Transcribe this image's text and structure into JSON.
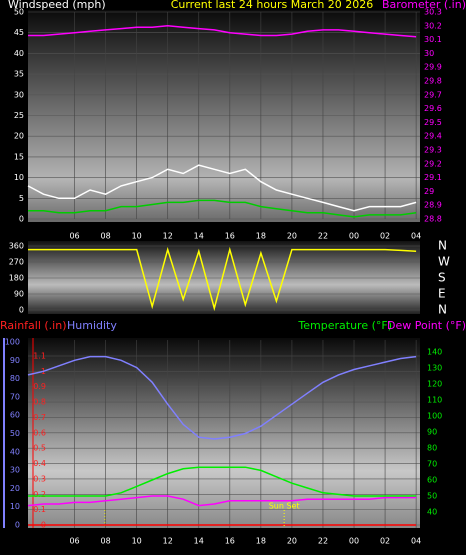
{
  "chart_data": [
    {
      "type": "line",
      "title": "Current last 24 hours March 20 2026",
      "ylabel": "Windspeed (mph)",
      "y2label": "Barometer (.in)",
      "x": [
        3,
        4,
        5,
        6,
        7,
        8,
        9,
        10,
        11,
        12,
        13,
        14,
        15,
        16,
        17,
        18,
        19,
        20,
        21,
        22,
        23,
        24,
        25,
        26,
        27,
        28
      ],
      "xlim": [
        3,
        28.25
      ],
      "xticks": [
        {
          "value": 6,
          "label": "06"
        },
        {
          "value": 8,
          "label": "08"
        },
        10,
        12,
        14,
        16,
        18,
        20,
        22,
        {
          "value": 24,
          "label": "00"
        },
        {
          "value": 26,
          "label": "02"
        },
        {
          "value": 28,
          "label": "04"
        }
      ],
      "ylim": [
        0,
        50
      ],
      "yticks": [
        0,
        5,
        10,
        15,
        20,
        25,
        30,
        35,
        40,
        45,
        50
      ],
      "y2lim": [
        28.8,
        30.3
      ],
      "y2ticks": [
        28.8,
        28.9,
        29,
        29.1,
        29.2,
        29.3,
        29.4,
        29.5,
        29.6,
        29.7,
        29.8,
        29.9,
        30,
        30.1,
        30.2,
        30.3
      ],
      "grid": true,
      "series": [
        {
          "color": "#ffffff",
          "values": [
            8,
            6,
            5,
            5,
            7,
            6,
            8,
            9,
            10,
            12,
            11,
            13,
            12,
            11,
            12,
            9,
            7,
            6,
            5,
            4,
            3,
            2,
            3,
            3,
            3,
            4
          ]
        },
        {
          "color": "#00cc00",
          "values": [
            2,
            2,
            1.5,
            1.5,
            2,
            2,
            3,
            3,
            3.5,
            4,
            4,
            4.5,
            4.5,
            4,
            4,
            3,
            2.5,
            2,
            1.5,
            1.5,
            1,
            0.5,
            1,
            1,
            1,
            1.5
          ]
        },
        {
          "color": "#ff00ff",
          "axis": "y2",
          "values": [
            30.13,
            30.13,
            30.14,
            30.15,
            30.16,
            30.17,
            30.18,
            30.19,
            30.19,
            30.2,
            30.19,
            30.18,
            30.17,
            30.15,
            30.14,
            30.13,
            30.13,
            30.14,
            30.16,
            30.17,
            30.17,
            30.16,
            30.15,
            30.14,
            30.13,
            30.12
          ]
        }
      ]
    },
    {
      "type": "line",
      "x": [
        3,
        4,
        5,
        6,
        7,
        8,
        9,
        10,
        11,
        12,
        13,
        14,
        15,
        16,
        17,
        18,
        19,
        20,
        21,
        22,
        23,
        24,
        25,
        26,
        27,
        28
      ],
      "xlim": [
        3,
        28.25
      ],
      "ylim": [
        0,
        360
      ],
      "yticks": [
        0,
        90,
        180,
        270,
        360
      ],
      "y2ticks": [
        {
          "value": 360,
          "label": "N"
        },
        {
          "value": 270,
          "label": "W"
        },
        {
          "value": 180,
          "label": "S"
        },
        {
          "value": 90,
          "label": "E"
        },
        {
          "value": 0,
          "label": "N"
        }
      ],
      "grid": true,
      "series": [
        {
          "color": "#ffff00",
          "values": [
            340,
            340,
            340,
            340,
            340,
            340,
            340,
            340,
            20,
            340,
            60,
            330,
            10,
            340,
            30,
            320,
            50,
            340,
            340,
            340,
            340,
            340,
            340,
            340,
            335,
            330
          ]
        }
      ]
    },
    {
      "type": "line",
      "ylabel": "Rainfall (.in)",
      "y3label": "Humidity",
      "y2label": "Temperature (°F)",
      "y2label_b": "Dew Point (°F)",
      "annotations": [
        {
          "text": "Sun Set",
          "x": 19.5
        }
      ],
      "x": [
        3,
        4,
        5,
        6,
        7,
        8,
        9,
        10,
        11,
        12,
        13,
        14,
        15,
        16,
        17,
        18,
        19,
        20,
        21,
        22,
        23,
        24,
        25,
        26,
        27,
        28
      ],
      "xlim": [
        3,
        28.25
      ],
      "xticks": [
        {
          "value": 6,
          "label": "06"
        },
        {
          "value": 8,
          "label": "08"
        },
        10,
        12,
        14,
        16,
        18,
        20,
        22,
        {
          "value": 24,
          "label": "00"
        },
        {
          "value": 26,
          "label": "02"
        },
        {
          "value": 28,
          "label": "04"
        }
      ],
      "ylim": [
        0,
        1.1
      ],
      "yticks": [
        0,
        0.1,
        0.2,
        0.3,
        0.4,
        0.5,
        0.6,
        0.7,
        0.8,
        0.9,
        1,
        1.1
      ],
      "y3lim": [
        0,
        100
      ],
      "y3ticks": [
        0,
        10,
        20,
        30,
        40,
        50,
        60,
        70,
        80,
        90,
        100
      ],
      "y2lim": [
        40,
        140
      ],
      "y2ticks": [
        40,
        50,
        60,
        70,
        80,
        90,
        100,
        110,
        120,
        130,
        140
      ],
      "grid": true,
      "series": [
        {
          "color": "#8080ff",
          "axis": "y3",
          "values": [
            82,
            84,
            87,
            90,
            92,
            92,
            90,
            86,
            78,
            66,
            55,
            48,
            47,
            48,
            50,
            54,
            60,
            66,
            72,
            78,
            82,
            85,
            87,
            89,
            91,
            92
          ]
        },
        {
          "color": "#00ee00",
          "axis": "y2",
          "values": [
            50,
            50,
            50,
            50,
            50,
            50,
            52,
            56,
            60,
            64,
            67,
            68,
            68,
            68,
            68,
            66,
            62,
            58,
            55,
            52,
            51,
            50,
            50,
            50,
            50,
            50
          ]
        },
        {
          "color": "#ff00ff",
          "axis": "y2",
          "values": [
            44,
            45,
            45,
            46,
            46,
            47,
            48,
            49,
            50,
            50,
            48,
            44,
            45,
            47,
            47,
            47,
            47,
            47,
            48,
            48,
            48,
            48,
            48,
            49,
            49,
            49
          ]
        },
        {
          "color": "#ff0000",
          "values": [
            0,
            0,
            0,
            0,
            0,
            0,
            0,
            0,
            0,
            0,
            0,
            0,
            0,
            0,
            0,
            0,
            0,
            0,
            0,
            0,
            0,
            0,
            0,
            0,
            0,
            0
          ]
        }
      ]
    }
  ]
}
